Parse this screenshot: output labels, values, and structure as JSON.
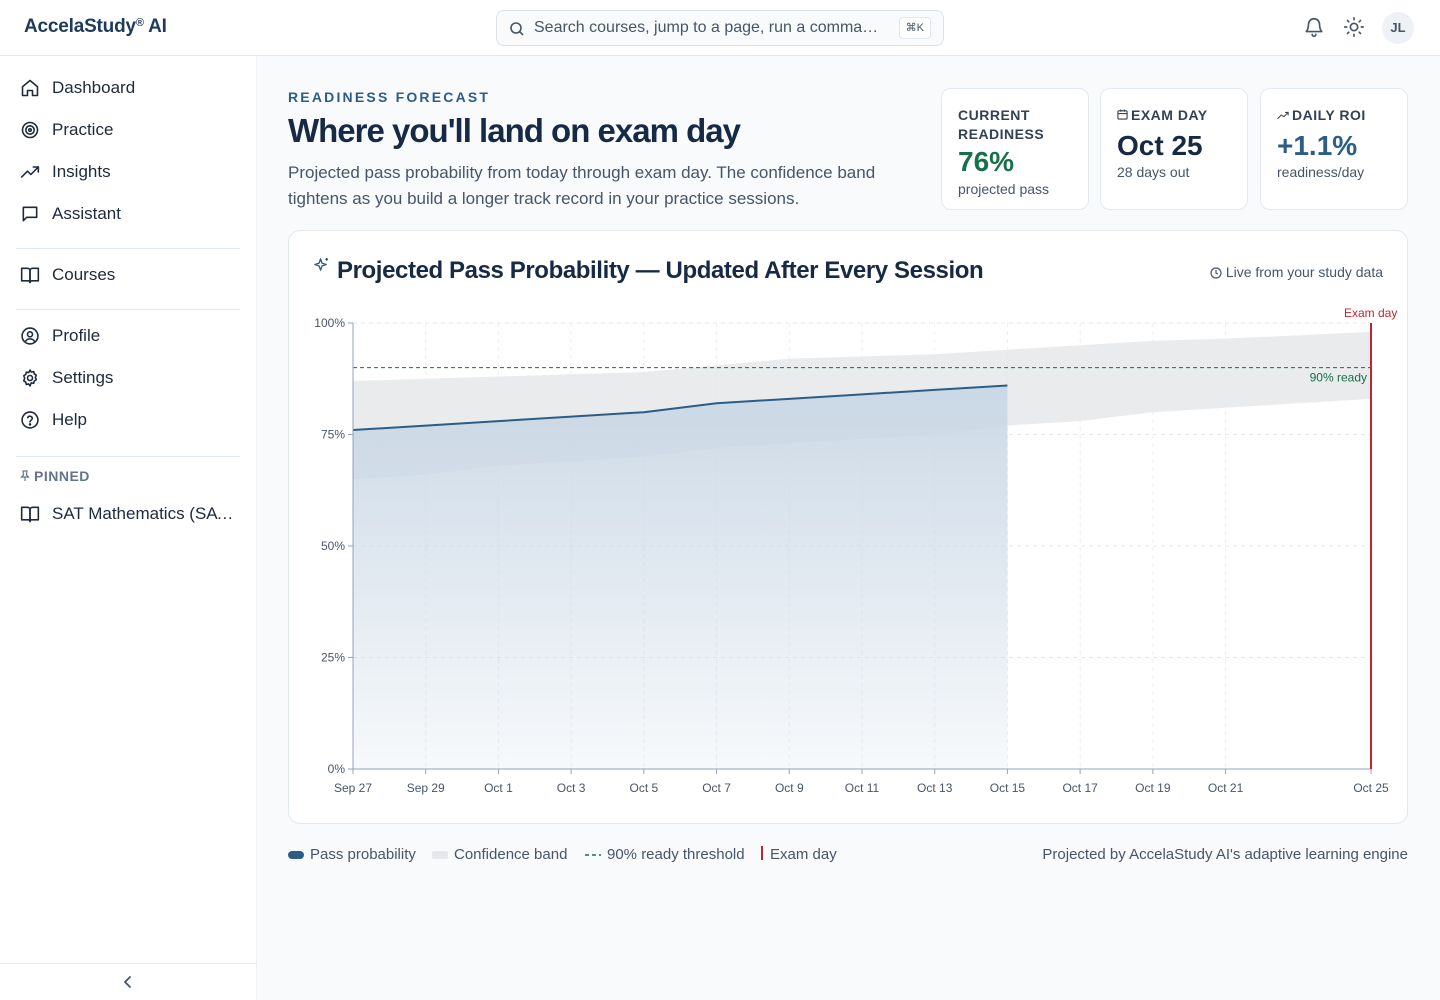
{
  "app": {
    "brand": "AccelaStudy",
    "brand_mark": "®",
    "brand_suffix": "AI"
  },
  "search": {
    "placeholder": "Search courses, jump to a page, run a comma…",
    "shortcut": "⌘K"
  },
  "topbar": {
    "user_initials": "JL",
    "icons": [
      "bell-icon",
      "sun-icon"
    ]
  },
  "sidebar": {
    "items": [
      {
        "label": "Dashboard",
        "icon": "home-icon"
      },
      {
        "label": "Practice",
        "icon": "target-icon"
      },
      {
        "label": "Insights",
        "icon": "trending-up-icon"
      },
      {
        "label": "Assistant",
        "icon": "message-square-icon"
      },
      {
        "label": "Courses",
        "icon": "book-open-icon"
      },
      {
        "label": "Profile",
        "icon": "user-circle-icon"
      },
      {
        "label": "Settings",
        "icon": "gear-icon"
      },
      {
        "label": "Help",
        "icon": "help-circle-icon"
      }
    ],
    "pinned_heading": "PINNED",
    "pinned": [
      {
        "label": "SAT Mathematics (SAT Math)",
        "icon": "book-open-icon"
      }
    ]
  },
  "header": {
    "eyebrow": "READINESS FORECAST",
    "title": "Where you'll land on exam day",
    "subtitle": "Projected pass probability from today through exam day. The confidence band tightens as you build a longer track record in your practice sessions."
  },
  "stats": {
    "current": {
      "label": "CURRENT READINESS",
      "value": "76%",
      "sub": "projected pass",
      "color": "#17704a"
    },
    "exam": {
      "label": "EXAM DAY",
      "value": "Oct 25",
      "sub": "28 days out",
      "color": "#172a45"
    },
    "roi": {
      "label": "DAILY ROI",
      "value": "+1.1%",
      "sub": "readiness/day",
      "color": "#2b5d86"
    }
  },
  "card": {
    "title": "Projected Pass Probability — Updated After Every Session",
    "live_label": "Live from your study data"
  },
  "chart_data": {
    "type": "area",
    "x_start": "2024-09-27",
    "y_ticks": [
      "0%",
      "25%",
      "50%",
      "75%",
      "100%"
    ],
    "x_ticks": [
      "Sep 27",
      "Sep 29",
      "Oct 1",
      "Oct 3",
      "Oct 5",
      "Oct 7",
      "Oct 9",
      "Oct 11",
      "Oct 13",
      "Oct 15",
      "Oct 17",
      "Oct 19",
      "Oct 21",
      "Oct 25"
    ],
    "ylim": [
      0,
      100
    ],
    "series": [
      {
        "name": "Pass probability",
        "x": [
          "Sep 27",
          "Sep 29",
          "Oct 1",
          "Oct 3",
          "Oct 5",
          "Oct 7",
          "Oct 9",
          "Oct 11",
          "Oct 13",
          "Oct 15"
        ],
        "values": [
          76,
          77,
          78,
          79,
          80,
          82,
          83,
          84,
          85,
          86
        ]
      }
    ],
    "confidence_band": {
      "name": "Confidence band",
      "x": [
        "Sep 27",
        "Sep 29",
        "Oct 1",
        "Oct 3",
        "Oct 5",
        "Oct 7",
        "Oct 9",
        "Oct 11",
        "Oct 13",
        "Oct 15",
        "Oct 17",
        "Oct 19",
        "Oct 21",
        "Oct 25"
      ],
      "lower": [
        65,
        66,
        68,
        69,
        70,
        72,
        73,
        74,
        75,
        77,
        78,
        80,
        81,
        83
      ],
      "upper": [
        87,
        87.5,
        88,
        88.5,
        89,
        90.5,
        92,
        92.5,
        93,
        94,
        95,
        96,
        96.5,
        98
      ]
    },
    "threshold": {
      "name": "90% ready threshold",
      "value": 90,
      "label": "90% ready"
    },
    "exam_marker": {
      "name": "Exam day",
      "x": "Oct 25",
      "label": "Exam day"
    },
    "colors": {
      "line": "#2b5d86",
      "area": "#c9d7e5",
      "band": "#e5e7ea",
      "threshold": "#17704a",
      "exam": "#c0262d"
    }
  },
  "legend": {
    "items": [
      {
        "label": "Pass probability"
      },
      {
        "label": "Confidence band"
      },
      {
        "label": "90% ready threshold"
      },
      {
        "label": "Exam day"
      }
    ],
    "footer": "Projected by AccelaStudy AI's adaptive learning engine"
  }
}
